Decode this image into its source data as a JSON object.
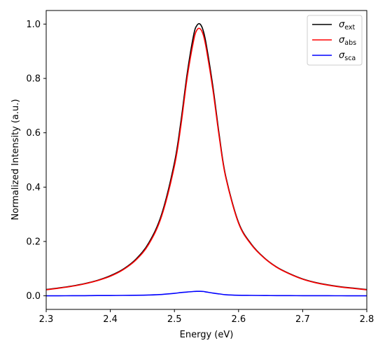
{
  "chart_data": {
    "type": "line",
    "title": "",
    "xlabel": "Energy (eV)",
    "ylabel": "Normalized Intensity (a.u.)",
    "xlim": [
      2.3,
      2.8
    ],
    "ylim": [
      -0.05,
      1.05
    ],
    "xticks": [
      "2.3",
      "2.4",
      "2.5",
      "2.6",
      "2.7",
      "2.8"
    ],
    "yticks": [
      "0.0",
      "0.2",
      "0.4",
      "0.6",
      "0.8",
      "1.0"
    ],
    "grid": false,
    "legend_position": "top-right",
    "x": [
      2.3,
      2.32,
      2.34,
      2.36,
      2.38,
      2.4,
      2.42,
      2.44,
      2.46,
      2.48,
      2.5,
      2.51,
      2.52,
      2.53,
      2.535,
      2.54,
      2.545,
      2.55,
      2.56,
      2.57,
      2.58,
      2.6,
      2.62,
      2.64,
      2.66,
      2.68,
      2.7,
      2.72,
      2.74,
      2.76,
      2.78,
      2.8
    ],
    "series": [
      {
        "name_main": "σ",
        "name_sub": "ext",
        "color": "#000000",
        "values": [
          0.023,
          0.029,
          0.036,
          0.045,
          0.057,
          0.074,
          0.098,
          0.135,
          0.195,
          0.3,
          0.49,
          0.64,
          0.82,
          0.96,
          0.995,
          1.0,
          0.975,
          0.92,
          0.77,
          0.59,
          0.44,
          0.27,
          0.19,
          0.14,
          0.105,
          0.081,
          0.062,
          0.049,
          0.04,
          0.033,
          0.028,
          0.023
        ]
      },
      {
        "name_main": "σ",
        "name_sub": "abs",
        "color": "#ff0000",
        "values": [
          0.022,
          0.028,
          0.035,
          0.044,
          0.056,
          0.072,
          0.096,
          0.132,
          0.19,
          0.293,
          0.478,
          0.625,
          0.805,
          0.94,
          0.978,
          0.983,
          0.96,
          0.905,
          0.758,
          0.582,
          0.436,
          0.267,
          0.188,
          0.139,
          0.104,
          0.08,
          0.061,
          0.048,
          0.039,
          0.032,
          0.027,
          0.022
        ]
      },
      {
        "name_main": "σ",
        "name_sub": "sca",
        "color": "#0000ff",
        "values": [
          0.0,
          0.0,
          0.0005,
          0.0005,
          0.001,
          0.001,
          0.0015,
          0.002,
          0.003,
          0.005,
          0.009,
          0.012,
          0.014,
          0.016,
          0.0165,
          0.0165,
          0.016,
          0.014,
          0.01,
          0.007,
          0.004,
          0.002,
          0.0015,
          0.001,
          0.0008,
          0.0006,
          0.0005,
          0.0004,
          0.0003,
          0.0002,
          0.0001,
          0.0
        ]
      }
    ]
  }
}
